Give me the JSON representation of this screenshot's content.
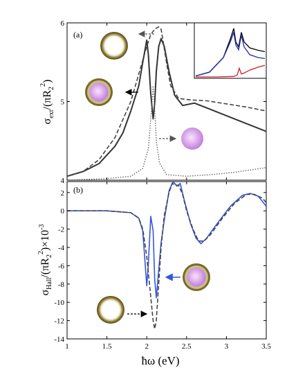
{
  "chart_data": [
    {
      "type": "line",
      "panel_label": "(a)",
      "ylabel": {
        "main": "σ",
        "sub1": "ext",
        "mid": "/(πR",
        "sub2": "2",
        "sup": "2",
        "end": ")"
      },
      "xlim": [
        1,
        3.5
      ],
      "ylim": [
        4,
        6
      ],
      "yticks": [
        4,
        5,
        6
      ],
      "series": [
        {
          "style": "solid-black",
          "x": [
            1.0,
            1.2,
            1.4,
            1.6,
            1.7,
            1.8,
            1.9,
            1.95,
            2.0,
            2.02,
            2.05,
            2.08,
            2.1,
            2.12,
            2.15,
            2.18,
            2.22,
            2.28,
            2.35,
            2.45,
            2.6,
            2.75,
            3.0,
            3.25,
            3.5
          ],
          "y": [
            4.05,
            4.11,
            4.21,
            4.43,
            4.6,
            4.88,
            5.2,
            5.5,
            5.78,
            5.6,
            5.1,
            4.78,
            4.98,
            5.38,
            5.7,
            5.8,
            5.7,
            5.38,
            5.08,
            4.95,
            4.98,
            4.92,
            4.82,
            4.72,
            4.62
          ]
        },
        {
          "style": "dashed-black",
          "x": [
            1.0,
            1.2,
            1.4,
            1.6,
            1.8,
            1.9,
            2.0,
            2.05,
            2.1,
            2.15,
            2.18,
            2.2,
            2.25,
            2.3,
            2.4,
            2.55,
            2.75,
            3.0,
            3.25,
            3.5
          ],
          "y": [
            4.05,
            4.11,
            4.26,
            4.54,
            5.0,
            5.35,
            5.7,
            5.85,
            5.92,
            5.95,
            5.92,
            5.8,
            5.48,
            5.2,
            5.04,
            5.02,
            5.01,
            4.97,
            4.93,
            4.88
          ]
        },
        {
          "style": "dotted-gray",
          "x": [
            1.0,
            1.5,
            1.8,
            1.95,
            2.02,
            2.06,
            2.08,
            2.1,
            2.12,
            2.16,
            2.25,
            2.5,
            2.8,
            3.1,
            3.5
          ],
          "y": [
            4.0,
            4.02,
            4.05,
            4.15,
            4.4,
            4.9,
            5.2,
            4.9,
            4.5,
            4.22,
            4.07,
            4.05,
            4.07,
            4.1,
            4.16
          ]
        }
      ],
      "inset": {
        "series": [
          {
            "color": "#000000",
            "x": [
              0,
              0.2,
              0.4,
              0.5,
              0.55,
              0.58,
              0.62,
              0.66,
              0.7,
              0.78,
              0.9,
              1.0
            ],
            "y": [
              0.02,
              0.1,
              0.4,
              0.78,
              1.0,
              0.72,
              0.62,
              0.92,
              0.72,
              0.6,
              0.55,
              0.52
            ]
          },
          {
            "color": "#1f2aa8",
            "x": [
              0,
              0.2,
              0.4,
              0.5,
              0.55,
              0.58,
              0.62,
              0.66,
              0.7,
              0.78,
              0.9,
              1.0
            ],
            "y": [
              0.02,
              0.1,
              0.4,
              0.72,
              0.92,
              0.66,
              0.56,
              0.86,
              0.62,
              0.46,
              0.4,
              0.38
            ]
          },
          {
            "color": "#d6182a",
            "x": [
              0,
              0.3,
              0.55,
              0.6,
              0.63,
              0.66,
              0.7,
              0.78,
              0.9,
              1.0
            ],
            "y": [
              0.0,
              0.0,
              0.01,
              0.04,
              0.18,
              0.06,
              0.08,
              0.14,
              0.2,
              0.24
            ]
          }
        ]
      }
    },
    {
      "type": "line",
      "panel_label": "(b)",
      "ylabel": {
        "main": "σ",
        "sub1": "Hall",
        "mid": "/(πR",
        "sub2": "2",
        "sup": "2",
        "end": ")×10",
        "sup2": "-3"
      },
      "xlabel": "ħω (eV)",
      "xlim": [
        1,
        3.5
      ],
      "ylim": [
        -14,
        3.2
      ],
      "xticks": [
        1,
        1.5,
        2,
        2.5,
        3,
        3.5
      ],
      "xtick_labels": [
        "1",
        "1.5",
        "2",
        "2.5",
        "3",
        "3.5"
      ],
      "yticks": [
        2,
        0,
        -2,
        -4,
        -6,
        -8,
        -10,
        -12,
        -14
      ],
      "series": [
        {
          "style": "solid-blue",
          "color": "#3355dd",
          "x": [
            1.0,
            1.5,
            1.8,
            1.9,
            1.95,
            2.0,
            2.02,
            2.05,
            2.08,
            2.1,
            2.12,
            2.15,
            2.18,
            2.22,
            2.28,
            2.33,
            2.38,
            2.42,
            2.47,
            2.55,
            2.62,
            2.68,
            2.75,
            2.9,
            3.05,
            3.2,
            3.3,
            3.4,
            3.5
          ],
          "y": [
            0,
            0,
            -0.2,
            -0.8,
            -2.2,
            -8.2,
            -5.8,
            -0.6,
            -2.2,
            -7.5,
            -9.5,
            -6.5,
            -3.5,
            -1.0,
            2.2,
            3.2,
            2.7,
            3.0,
            1.2,
            -1.4,
            -3.0,
            -3.6,
            -3.0,
            -1.2,
            0.5,
            1.7,
            1.9,
            1.6,
            0.5
          ]
        },
        {
          "style": "dashed-black",
          "x": [
            1.0,
            1.5,
            1.8,
            1.9,
            1.95,
            2.0,
            2.04,
            2.08,
            2.1,
            2.12,
            2.15,
            2.18,
            2.22,
            2.28,
            2.32,
            2.36,
            2.4,
            2.45,
            2.5,
            2.58,
            2.65,
            2.72,
            2.8,
            2.95,
            3.1,
            3.25,
            3.35,
            3.45,
            3.5
          ],
          "y": [
            0,
            0,
            -0.2,
            -0.8,
            -2.0,
            -5.0,
            -8.5,
            -12.0,
            -12.9,
            -12.0,
            -8.0,
            -4.0,
            -0.5,
            2.0,
            3.0,
            2.8,
            2.8,
            1.8,
            0.0,
            -2.0,
            -3.3,
            -3.3,
            -2.6,
            -0.8,
            0.8,
            1.8,
            1.8,
            1.4,
            0.9
          ]
        }
      ]
    }
  ],
  "colors": {
    "shell": "#6f5d22",
    "shell_glow": "#e6dfb8",
    "core_pink": "#d49ae8",
    "core_pink_light": "#f6e6fb",
    "arrow_blue": "#3355dd",
    "axis": "#000000"
  },
  "icons": [
    "core-shell-particle-hollow",
    "core-shell-particle-filled",
    "bare-core-particle"
  ]
}
